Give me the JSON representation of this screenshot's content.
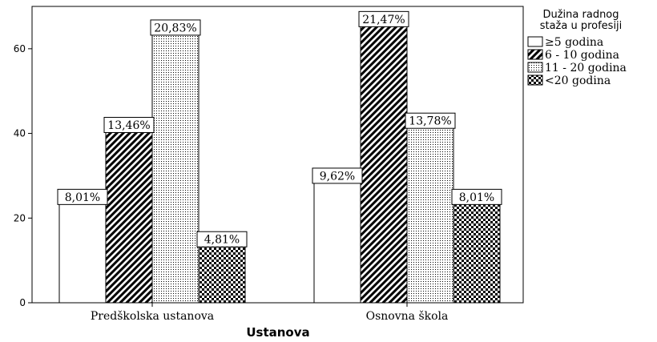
{
  "chart_data": {
    "type": "bar",
    "xlabel": "Ustanova",
    "ylabel": "",
    "ylim": [
      0,
      70
    ],
    "yticks": [
      0,
      20,
      40,
      60
    ],
    "grid": false,
    "legend_position": "top-right",
    "legend_title": [
      "Dužina radnog",
      "staža u profesiji"
    ],
    "categories": [
      "Predškolska ustanova",
      "Osnovna škola"
    ],
    "series": [
      {
        "name": "≥5 godina",
        "pattern": "white",
        "values": [
          25,
          30
        ],
        "labels": [
          "8,01%",
          "9,62%"
        ]
      },
      {
        "name": "6 - 10 godina",
        "pattern": "diagonal-stripes",
        "values": [
          42,
          67
        ],
        "labels": [
          "13,46%",
          "21,47%"
        ]
      },
      {
        "name": "11 - 20 godina",
        "pattern": "dotted",
        "values": [
          65,
          43
        ],
        "labels": [
          "20,83%",
          "13,78%"
        ]
      },
      {
        "name": "<20 godina",
        "pattern": "checkerboard",
        "values": [
          15,
          25
        ],
        "labels": [
          "4,81%",
          "8,01%"
        ]
      }
    ]
  }
}
